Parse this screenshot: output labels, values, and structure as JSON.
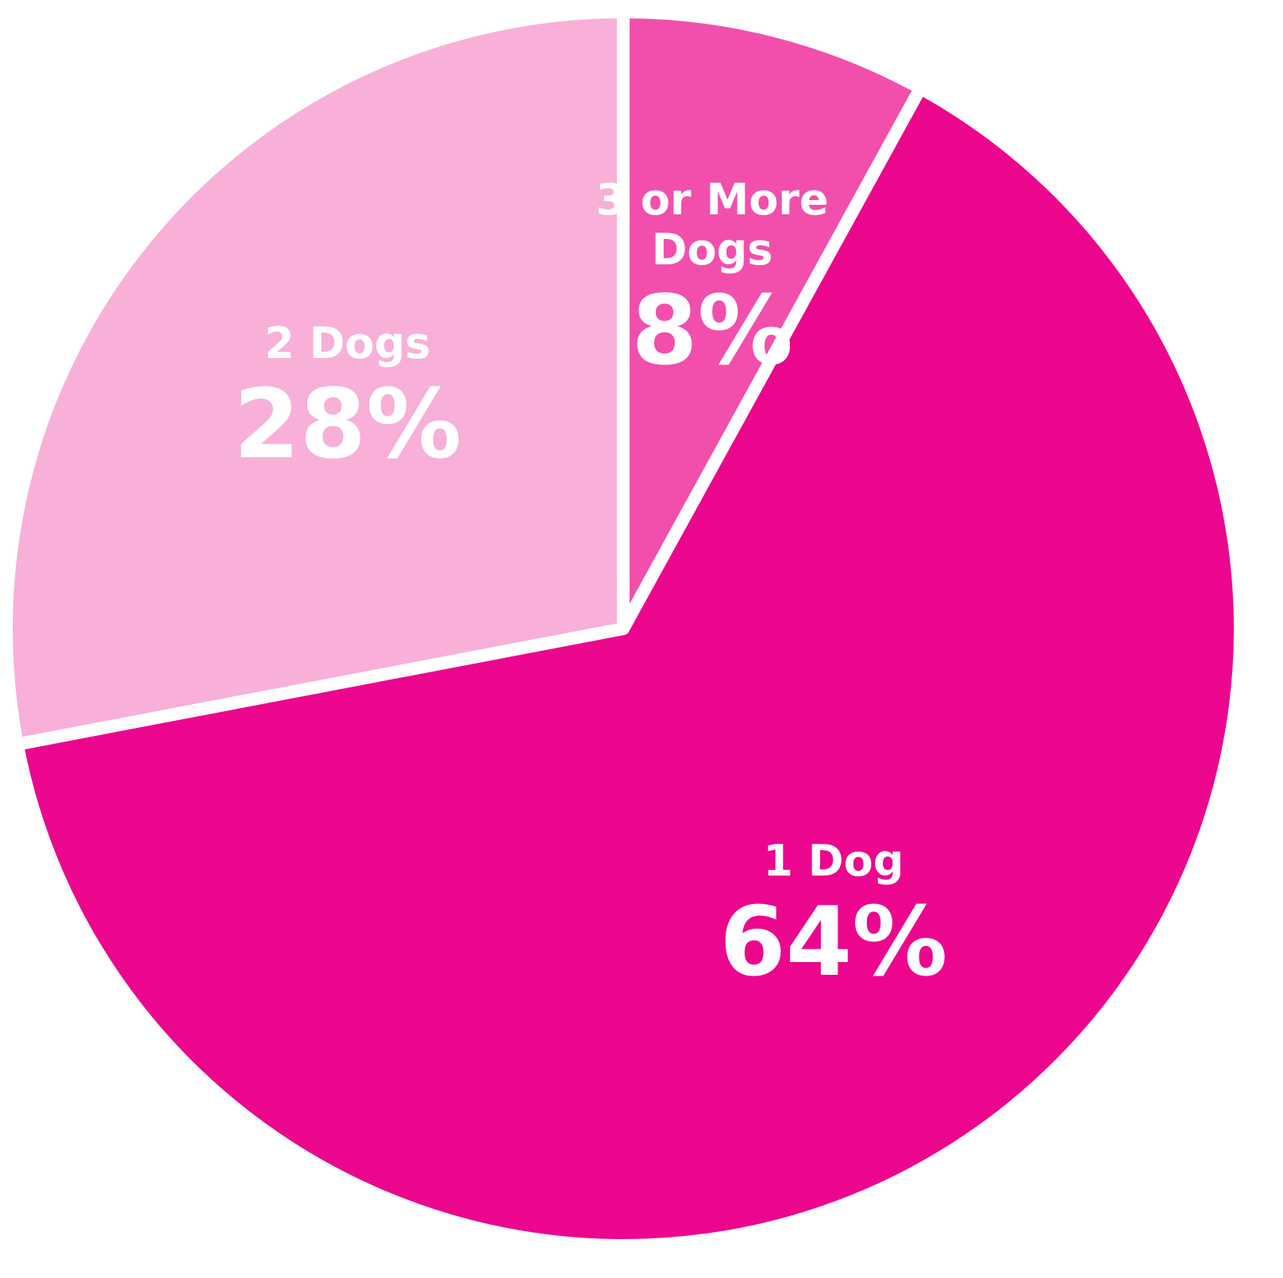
{
  "chart_data": {
    "type": "pie",
    "categories": [
      "3 or More Dogs",
      "1 Dog",
      "2 Dogs"
    ],
    "values": [
      8,
      64,
      28
    ],
    "value_labels": [
      "8%",
      "64%",
      "28%"
    ],
    "colors": [
      "#f24fac",
      "#ec068d",
      "#f8b0d8"
    ]
  }
}
